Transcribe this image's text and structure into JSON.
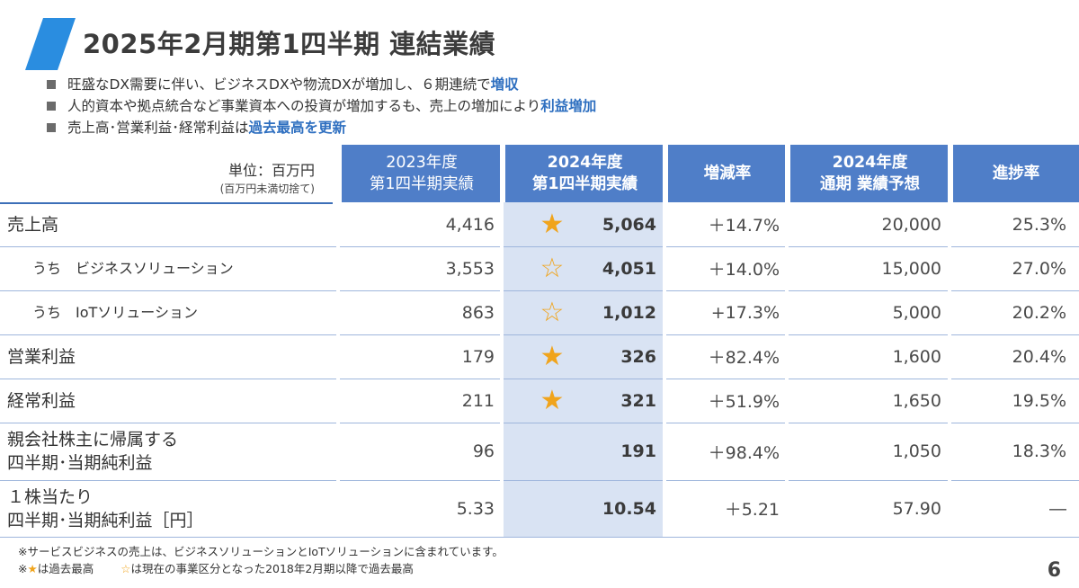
{
  "title": "2025年2月期第1四半期 連結業績",
  "bullets": [
    {
      "text": "旺盛なDX需要に伴い、ビジネスDXや物流DXが増加し、６期連続で",
      "highlight": "増収"
    },
    {
      "text": "人的資本や拠点統合など事業資本への投資が増加するも、売上の増加により",
      "highlight": "利益増加"
    },
    {
      "text": "売上高･営業利益･経常利益は",
      "highlight": "過去最高を更新"
    }
  ],
  "table": {
    "unit_main": "単位：百万円",
    "unit_sub": "(百万円未満切捨て)",
    "headers": {
      "fy2023_line1": "2023年度",
      "fy2023_line2": "第1四半期実績",
      "fy2024_line1": "2024年度",
      "fy2024_line2": "第1四半期実績",
      "change": "増減率",
      "forecast_line1": "2024年度",
      "forecast_line2": "通期 業績予想",
      "progress": "進捗率"
    },
    "rows": [
      {
        "label1": "売上高",
        "label2": "",
        "prev": "4,416",
        "star": "★",
        "curr": "5,064",
        "change": "＋14.7%",
        "forecast": "20,000",
        "progress": "25.3%"
      },
      {
        "label1": "うち　ビジネスソリューション",
        "label2": "",
        "prev": "3,553",
        "star": "☆",
        "curr": "4,051",
        "change": "＋14.0%",
        "forecast": "15,000",
        "progress": "27.0%"
      },
      {
        "label1": "うち　IoTソリューション",
        "label2": "",
        "prev": "863",
        "star": "☆",
        "curr": "1,012",
        "change": "+17.3%",
        "forecast": "5,000",
        "progress": "20.2%"
      },
      {
        "label1": "営業利益",
        "label2": "",
        "prev": "179",
        "star": "★",
        "curr": "326",
        "change": "＋82.4%",
        "forecast": "1,600",
        "progress": "20.4%"
      },
      {
        "label1": "経常利益",
        "label2": "",
        "prev": "211",
        "star": "★",
        "curr": "321",
        "change": "＋51.9%",
        "forecast": "1,650",
        "progress": "19.5%"
      },
      {
        "label1": "親会社株主に帰属する",
        "label2": "四半期･当期純利益",
        "prev": "96",
        "star": "",
        "curr": "191",
        "change": "＋98.4%",
        "forecast": "1,050",
        "progress": "18.3%"
      },
      {
        "label1": "１株当たり",
        "label2": "四半期･当期純利益［円］",
        "prev": "5.33",
        "star": "",
        "curr": "10.54",
        "change": "＋5.21",
        "forecast": "57.90",
        "progress": "―"
      }
    ]
  },
  "footnotes": {
    "line1": "※サービスビジネスの売上は、ビジネスソリューションとIoTソリューションに含まれています。",
    "line2_prefix": "※",
    "line2_star": "★",
    "line2_text1": "は過去最高",
    "line2_hollow": "☆",
    "line2_text2": "は現在の事業区分となった2018年2月期以降で過去最高"
  },
  "page_number": "6",
  "colors": {
    "accent_blue": "#4f7ec8",
    "highlight_text": "#2e6fc0",
    "star": "#f0a41c",
    "highlight_column": "#d9e3f3",
    "slash": "#2a8de0"
  }
}
